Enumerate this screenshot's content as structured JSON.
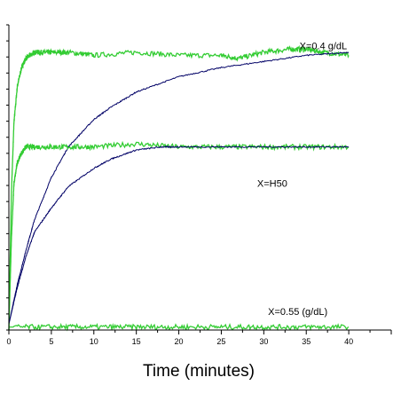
{
  "chart_data": {
    "type": "line",
    "xlabel": "Time (minutes)",
    "ylabel": "",
    "title": "",
    "xlim": [
      0,
      45
    ],
    "ylim": [
      0,
      1.0
    ],
    "x_ticks": [
      0,
      5,
      10,
      15,
      20,
      25,
      30,
      35,
      40
    ],
    "y_minor_tick_count": 19,
    "grid": false,
    "legend": "none",
    "annotations": [
      {
        "text": "X=0.4 g/dL",
        "x": 37,
        "y": 0.92
      },
      {
        "text": "X=H50",
        "x": 31,
        "y": 0.47
      },
      {
        "text": "X=0.55 (g/dL)",
        "x": 34,
        "y": 0.05
      }
    ],
    "series": [
      {
        "color": "#33cc33",
        "x": [
          0,
          0.3,
          0.6,
          1,
          1.5,
          2,
          2.5,
          3,
          4,
          5,
          7,
          10,
          15,
          20,
          25,
          27,
          30,
          33,
          35,
          37,
          40
        ],
        "y": [
          0.0,
          0.45,
          0.68,
          0.8,
          0.86,
          0.89,
          0.9,
          0.91,
          0.91,
          0.91,
          0.91,
          0.9,
          0.91,
          0.9,
          0.9,
          0.89,
          0.91,
          0.92,
          0.92,
          0.91,
          0.9
        ]
      },
      {
        "color": "#000066",
        "x": [
          0,
          1,
          2,
          3,
          5,
          7,
          10,
          12,
          15,
          20,
          25,
          30,
          35,
          40
        ],
        "y": [
          0.02,
          0.15,
          0.26,
          0.36,
          0.5,
          0.6,
          0.69,
          0.73,
          0.78,
          0.83,
          0.86,
          0.88,
          0.9,
          0.91
        ]
      },
      {
        "color": "#33cc33",
        "x": [
          0,
          0.3,
          0.6,
          1,
          1.5,
          2,
          3,
          5,
          7,
          10,
          15,
          20,
          25,
          30,
          35,
          40
        ],
        "y": [
          0.0,
          0.3,
          0.48,
          0.55,
          0.58,
          0.6,
          0.6,
          0.6,
          0.6,
          0.6,
          0.61,
          0.6,
          0.6,
          0.6,
          0.6,
          0.6
        ]
      },
      {
        "color": "#000066",
        "x": [
          0,
          1,
          2,
          3,
          5,
          7,
          10,
          12,
          15,
          18,
          20,
          25,
          30,
          35,
          40
        ],
        "y": [
          0.02,
          0.14,
          0.24,
          0.32,
          0.4,
          0.47,
          0.53,
          0.56,
          0.59,
          0.6,
          0.6,
          0.6,
          0.6,
          0.6,
          0.6
        ]
      },
      {
        "color": "#33cc33",
        "x": [
          0,
          5,
          10,
          15,
          20,
          25,
          30,
          35,
          40
        ],
        "y": [
          0.01,
          0.01,
          0.01,
          0.01,
          0.01,
          0.01,
          0.01,
          0.01,
          0.01
        ]
      }
    ]
  }
}
